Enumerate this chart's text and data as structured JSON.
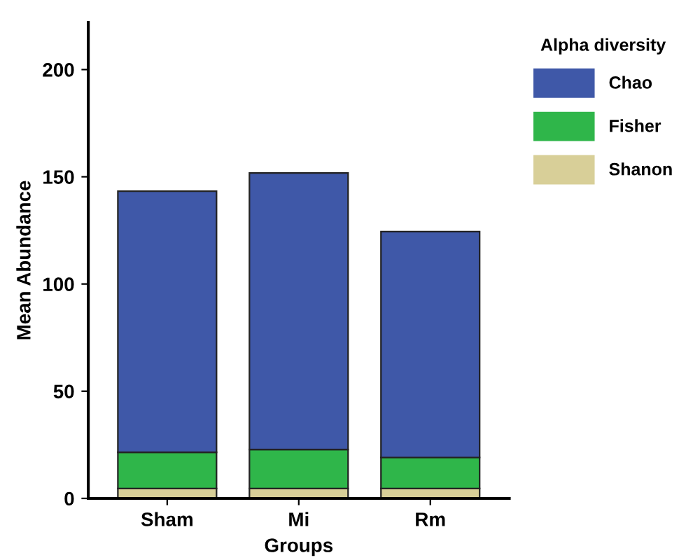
{
  "chart_data": {
    "type": "bar",
    "stacked": true,
    "xlabel": "Groups",
    "ylabel": "Mean Abundance",
    "legend_title": "Alpha diversity",
    "legend": "right",
    "grid": false,
    "categories": [
      "Sham",
      "Mi",
      "Rm"
    ],
    "series": [
      {
        "name": "Shanon",
        "color": "#d8cf98",
        "values": [
          4.6,
          4.6,
          4.6
        ]
      },
      {
        "name": "Fisher",
        "color": "#2fb64a",
        "values": [
          16.9,
          18.2,
          14.5
        ]
      },
      {
        "name": "Chao",
        "color": "#3f58a8",
        "values": [
          121.8,
          129.0,
          105.3
        ]
      }
    ],
    "ylim": [
      0,
      222
    ],
    "yticks": [
      0,
      50,
      100,
      150,
      200
    ]
  }
}
